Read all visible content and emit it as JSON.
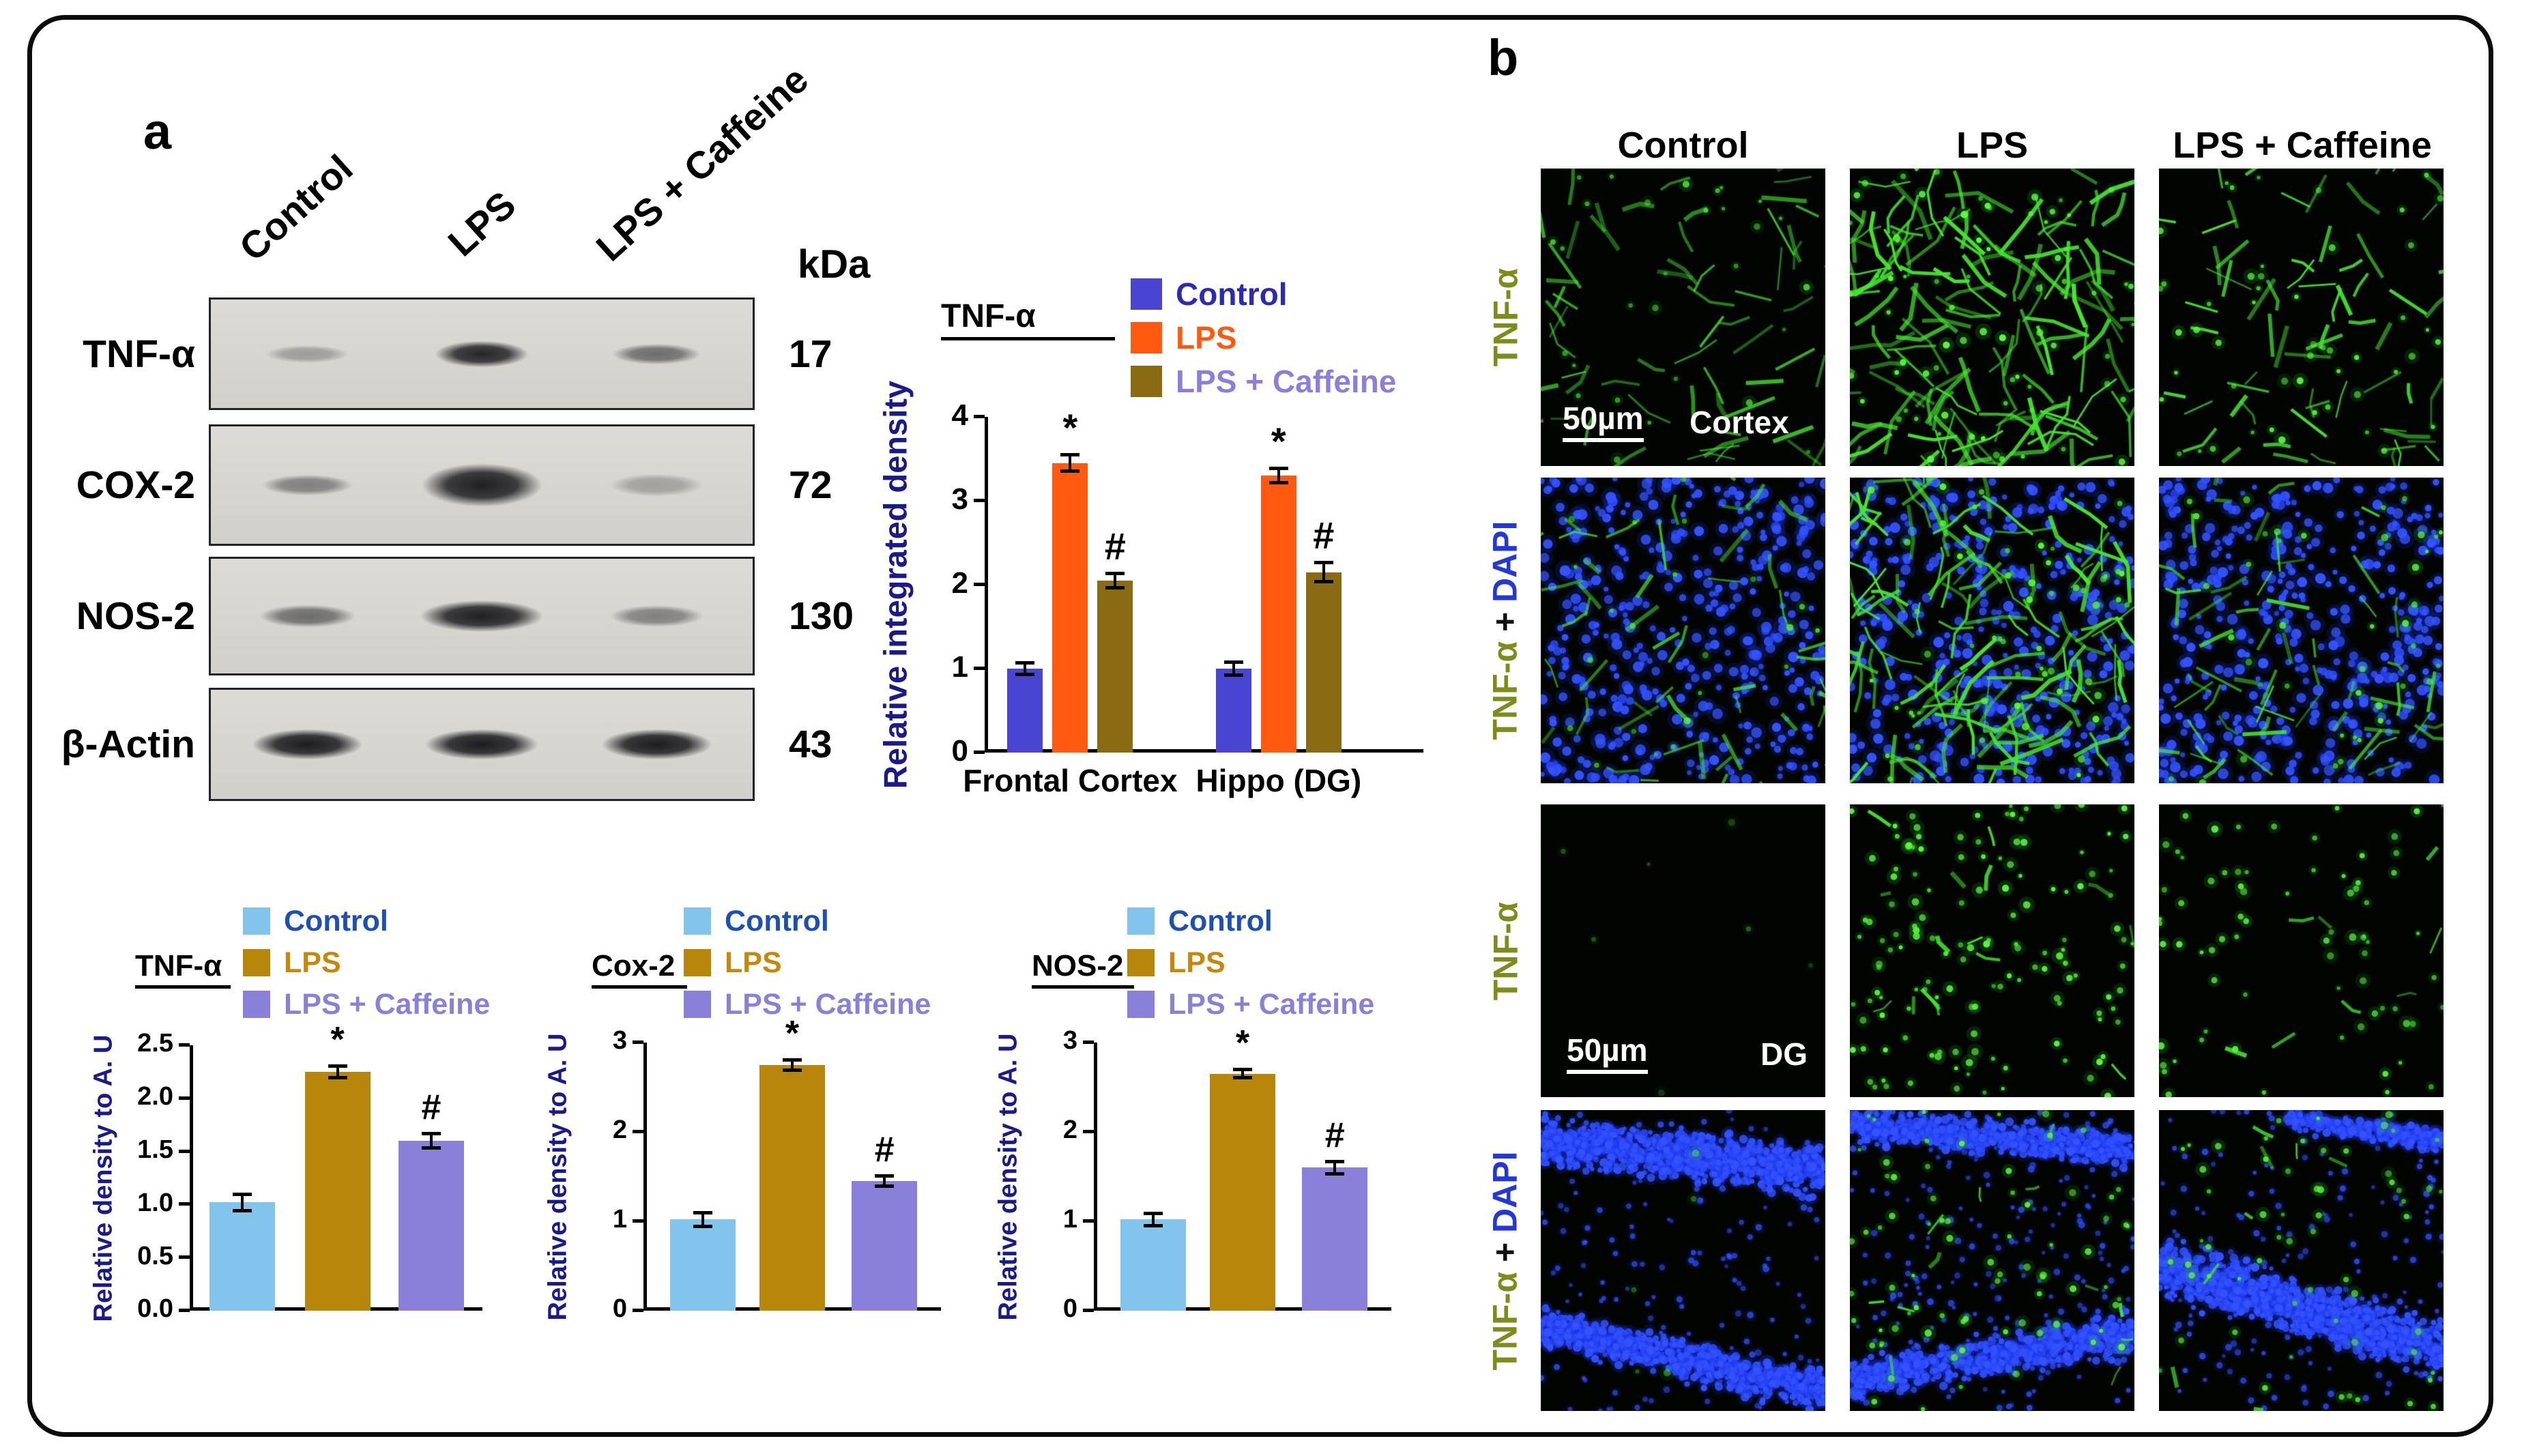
{
  "panels": {
    "a_label": "a",
    "b_label": "b"
  },
  "western_blot": {
    "column_labels": [
      "Control",
      "LPS",
      "LPS + Caffeine"
    ],
    "kda_header": "kDa",
    "rows": [
      {
        "protein": "TNF-α",
        "kda": "17",
        "band_intensities": [
          0.3,
          0.92,
          0.55
        ]
      },
      {
        "protein": "COX-2",
        "kda": "72",
        "band_intensities": [
          0.45,
          0.95,
          0.28
        ]
      },
      {
        "protein": "NOS-2",
        "kda": "130",
        "band_intensities": [
          0.55,
          0.95,
          0.45
        ]
      },
      {
        "protein": "β-Actin",
        "kda": "43",
        "band_intensities": [
          0.97,
          0.97,
          0.97
        ]
      }
    ]
  },
  "chart_data": [
    {
      "type": "bar",
      "title": "TNF-α",
      "ylabel": "Relative integrated density",
      "ylim": [
        0,
        4
      ],
      "yticks": [
        0,
        1,
        2,
        3,
        4
      ],
      "ytick_labels": [
        "0",
        "1",
        "2",
        "3",
        "4"
      ],
      "categories": [
        "Frontal Cortex",
        "Hippo (DG)"
      ],
      "series": [
        {
          "name": "Control",
          "color": "#4945d2",
          "text_color": "#2b2bb4",
          "values": [
            1.0,
            1.0
          ],
          "errors": [
            0.07,
            0.08
          ],
          "annotations": [
            "",
            ""
          ]
        },
        {
          "name": "LPS",
          "color": "#ff5a0f",
          "text_color": "#ff5a0f",
          "values": [
            3.45,
            3.3
          ],
          "errors": [
            0.1,
            0.09
          ],
          "annotations": [
            "*",
            "*"
          ]
        },
        {
          "name": "LPS + Caffeine",
          "color": "#8a6a12",
          "text_color": "#8b7fdb",
          "values": [
            2.05,
            2.15
          ],
          "errors": [
            0.09,
            0.12
          ],
          "annotations": [
            "#",
            "#"
          ]
        }
      ],
      "legend_position": "top",
      "grid": false
    },
    {
      "type": "bar",
      "title": "TNF-α",
      "ylabel": "Relative density to A. U",
      "ylim": [
        0,
        2.5
      ],
      "yticks": [
        0,
        0.5,
        1,
        1.5,
        2,
        2.5
      ],
      "ytick_labels": [
        "0.0",
        "0.5",
        "1.0",
        "1.5",
        "2.0",
        "2.5"
      ],
      "categories": [
        "Control",
        "LPS",
        "LPS + Caffeine"
      ],
      "values": [
        1.02,
        2.25,
        1.6
      ],
      "errors": [
        0.08,
        0.06,
        0.07
      ],
      "annotations": [
        "",
        "*",
        "#"
      ],
      "bar_colors": [
        "#82c4ec",
        "#b8860b",
        "#8b80d9"
      ],
      "legend": [
        {
          "name": "Control",
          "color": "#82c4ec",
          "text_color": "#1d50b4"
        },
        {
          "name": "LPS",
          "color": "#b8860b",
          "text_color": "#c8860b"
        },
        {
          "name": "LPS + Caffeine",
          "color": "#8b80d9",
          "text_color": "#8b80d9"
        }
      ],
      "xlabels_visible": false,
      "grid": false
    },
    {
      "type": "bar",
      "title": "Cox-2",
      "ylabel": "Relative density to A. U",
      "ylim": [
        0,
        3
      ],
      "yticks": [
        0,
        1,
        2,
        3
      ],
      "ytick_labels": [
        "0",
        "1",
        "2",
        "3"
      ],
      "categories": [
        "Control",
        "LPS",
        "LPS + Caffeine"
      ],
      "values": [
        1.02,
        2.75,
        1.45
      ],
      "errors": [
        0.08,
        0.06,
        0.06
      ],
      "annotations": [
        "",
        "*",
        "#"
      ],
      "bar_colors": [
        "#82c4ec",
        "#b8860b",
        "#8b80d9"
      ],
      "legend": [
        {
          "name": "Control",
          "color": "#82c4ec",
          "text_color": "#1d50b4"
        },
        {
          "name": "LPS",
          "color": "#b8860b",
          "text_color": "#c8860b"
        },
        {
          "name": "LPS + Caffeine",
          "color": "#8b80d9",
          "text_color": "#8b80d9"
        }
      ],
      "xlabels_visible": false,
      "grid": false
    },
    {
      "type": "bar",
      "title": "NOS-2",
      "ylabel": "Relative density to A. U",
      "ylim": [
        0,
        3
      ],
      "yticks": [
        0,
        1,
        2,
        3
      ],
      "ytick_labels": [
        "0",
        "1",
        "2",
        "3"
      ],
      "categories": [
        "Control",
        "LPS",
        "LPS + Caffeine"
      ],
      "values": [
        1.02,
        2.65,
        1.6
      ],
      "errors": [
        0.07,
        0.05,
        0.07
      ],
      "annotations": [
        "",
        "*",
        "#"
      ],
      "bar_colors": [
        "#82c4ec",
        "#b8860b",
        "#8b80d9"
      ],
      "legend": [
        {
          "name": "Control",
          "color": "#82c4ec",
          "text_color": "#1d50b4"
        },
        {
          "name": "LPS",
          "color": "#b8860b",
          "text_color": "#c8860b"
        },
        {
          "name": "LPS + Caffeine",
          "color": "#8b80d9",
          "text_color": "#8b80d9"
        }
      ],
      "xlabels_visible": false,
      "grid": false
    }
  ],
  "panel_b": {
    "column_headers": [
      "Control",
      "LPS",
      "LPS + Caffeine"
    ],
    "rows": [
      {
        "stain": "TNF-α",
        "plus": "",
        "dapi": "",
        "scale_label": "50µm",
        "region_label": "Cortex"
      },
      {
        "stain": "TNF-α",
        "plus": " + ",
        "dapi": "DAPI",
        "scale_label": "",
        "region_label": ""
      },
      {
        "stain": "TNF-α",
        "plus": "",
        "dapi": "",
        "scale_label": "50µm",
        "region_label": "DG"
      },
      {
        "stain": "TNF-α",
        "plus": " + ",
        "dapi": "DAPI",
        "scale_label": "",
        "region_label": ""
      }
    ]
  },
  "colors": {
    "stain_label": "#7d8c1a",
    "dapi_label": "#2438d8",
    "axis_label": "#1a1a8c",
    "micrograph_green": "#3fe02a",
    "micrograph_blue": "#3454ff"
  }
}
